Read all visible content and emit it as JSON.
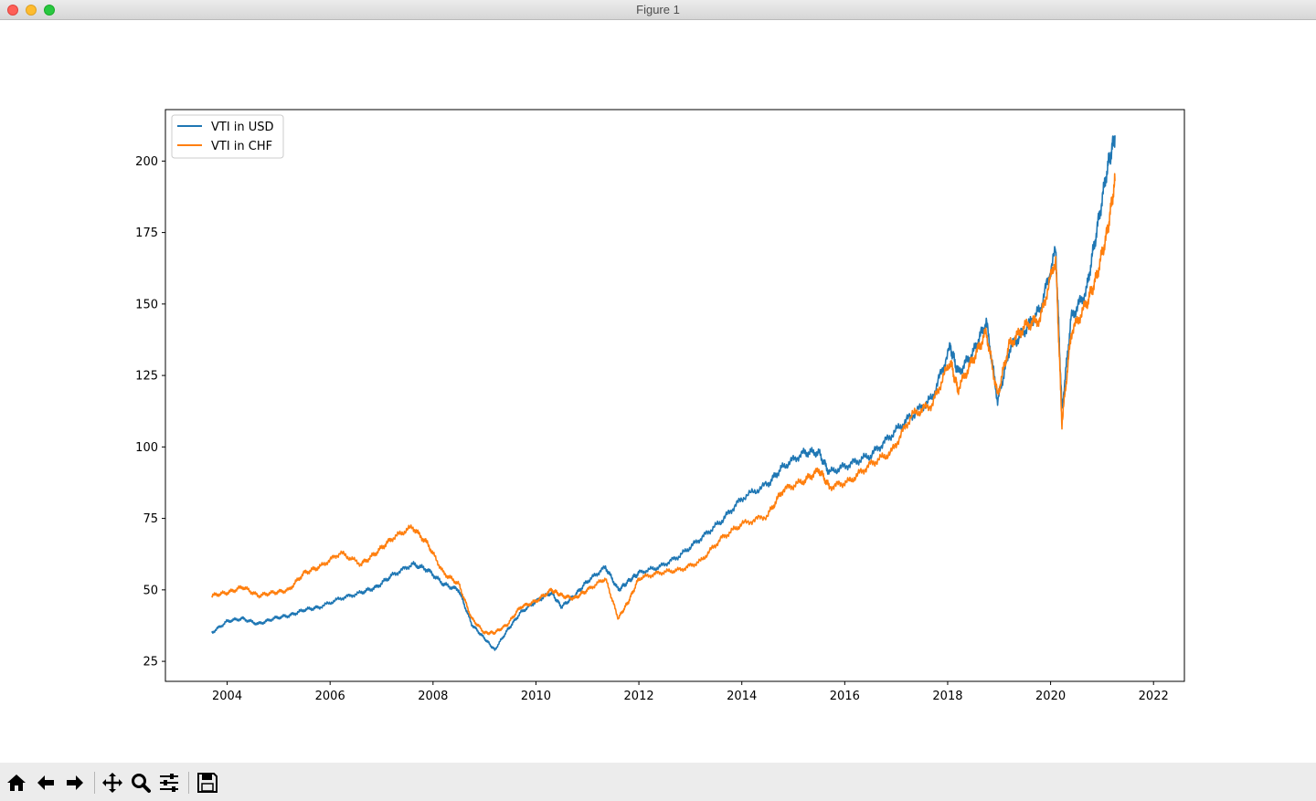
{
  "window": {
    "title": "Figure 1"
  },
  "toolbar": {
    "buttons": [
      {
        "icon": "home-icon",
        "label": "Home"
      },
      {
        "icon": "back-arrow-icon",
        "label": "Back"
      },
      {
        "icon": "forward-arrow-icon",
        "label": "Forward"
      },
      {
        "icon": "pan-icon",
        "label": "Pan"
      },
      {
        "icon": "zoom-icon",
        "label": "Zoom"
      },
      {
        "icon": "subplots-config-icon",
        "label": "Configure subplots"
      },
      {
        "icon": "save-icon",
        "label": "Save"
      }
    ]
  },
  "chart_data": {
    "type": "line",
    "title": "",
    "xlabel": "",
    "ylabel": "",
    "xlim": [
      2002.8,
      2022.6
    ],
    "ylim": [
      18,
      218
    ],
    "xticks": [
      2004,
      2006,
      2008,
      2010,
      2012,
      2014,
      2016,
      2018,
      2020,
      2022
    ],
    "yticks": [
      25,
      50,
      75,
      100,
      125,
      150,
      175,
      200
    ],
    "grid": false,
    "legend_position": "upper left",
    "series": [
      {
        "name": "VTI in USD",
        "color": "#1f77b4",
        "x": [
          2003.7,
          2004.0,
          2004.3,
          2004.6,
          2004.9,
          2005.2,
          2005.5,
          2005.8,
          2006.2,
          2006.6,
          2006.9,
          2007.2,
          2007.6,
          2007.9,
          2008.2,
          2008.5,
          2008.75,
          2009.0,
          2009.2,
          2009.45,
          2009.7,
          2010.0,
          2010.3,
          2010.5,
          2010.75,
          2011.0,
          2011.35,
          2011.6,
          2011.8,
          2012.0,
          2012.4,
          2012.8,
          2013.2,
          2013.6,
          2014.0,
          2014.5,
          2014.8,
          2015.2,
          2015.5,
          2015.7,
          2016.1,
          2016.5,
          2016.9,
          2017.3,
          2017.7,
          2018.05,
          2018.2,
          2018.5,
          2018.75,
          2018.97,
          2019.2,
          2019.5,
          2019.8,
          2020.1,
          2020.22,
          2020.4,
          2020.7,
          2020.9,
          2021.1,
          2021.25
        ],
        "y": [
          35,
          39,
          40,
          38,
          40,
          41,
          43,
          44,
          47,
          49,
          51,
          55,
          59,
          57,
          52,
          50,
          38,
          33,
          29,
          36,
          42,
          46,
          49,
          44,
          48,
          53,
          58,
          50,
          53,
          56,
          58,
          62,
          68,
          74,
          82,
          87,
          93,
          98,
          98,
          91,
          94,
          97,
          104,
          111,
          117,
          135,
          126,
          133,
          144,
          116,
          134,
          141,
          148,
          169,
          113,
          145,
          155,
          176,
          197,
          209
        ]
      },
      {
        "name": "VTI in CHF",
        "color": "#ff7f0e",
        "x": [
          2003.7,
          2004.0,
          2004.3,
          2004.6,
          2004.9,
          2005.2,
          2005.5,
          2005.8,
          2006.2,
          2006.6,
          2006.9,
          2007.2,
          2007.6,
          2007.9,
          2008.2,
          2008.5,
          2008.75,
          2009.0,
          2009.2,
          2009.45,
          2009.7,
          2010.0,
          2010.3,
          2010.5,
          2010.75,
          2011.0,
          2011.35,
          2011.6,
          2011.8,
          2012.0,
          2012.4,
          2012.8,
          2013.2,
          2013.6,
          2014.0,
          2014.5,
          2014.8,
          2015.2,
          2015.5,
          2015.7,
          2016.1,
          2016.5,
          2016.9,
          2017.3,
          2017.7,
          2018.05,
          2018.2,
          2018.5,
          2018.75,
          2018.97,
          2019.2,
          2019.5,
          2019.8,
          2020.1,
          2020.22,
          2020.4,
          2020.7,
          2020.9,
          2021.1,
          2021.25
        ],
        "y": [
          48,
          49,
          51,
          48,
          49,
          50,
          56,
          58,
          63,
          59,
          63,
          68,
          72,
          66,
          56,
          52,
          40,
          35,
          35,
          38,
          44,
          46,
          50,
          48,
          47,
          50,
          54,
          40,
          46,
          54,
          56,
          57,
          60,
          68,
          73,
          76,
          85,
          88,
          92,
          86,
          88,
          94,
          98,
          111,
          115,
          130,
          120,
          131,
          140,
          118,
          136,
          142,
          145,
          166,
          108,
          140,
          150,
          160,
          175,
          193
        ]
      }
    ]
  }
}
